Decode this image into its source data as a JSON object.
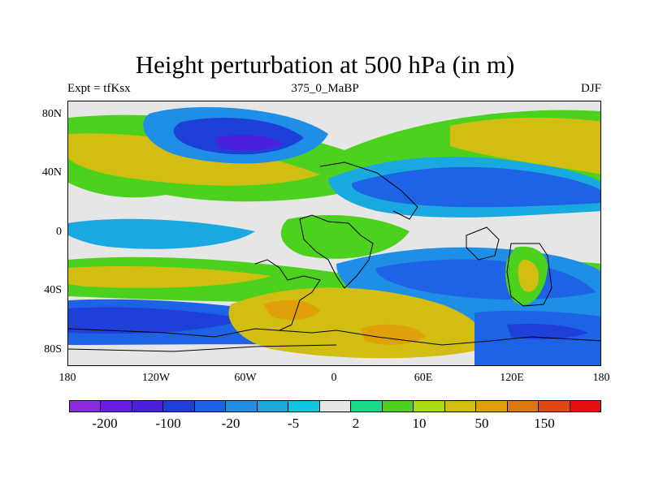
{
  "title": "Height perturbation at 500 hPa (in m)",
  "subtitle_left": "Expt = tfKsx",
  "subtitle_center": "375_0_MaBP",
  "subtitle_right": "DJF",
  "lat_labels": [
    "80N",
    "40N",
    "0",
    "40S",
    "80S"
  ],
  "lon_labels": [
    "180",
    "120W",
    "60W",
    "0",
    "60E",
    "120E",
    "180"
  ],
  "colorbar": {
    "colors": [
      "#8a2be2",
      "#6a1de0",
      "#4a20d8",
      "#1e3fd8",
      "#1a62e6",
      "#1e8ee6",
      "#1aa8e0",
      "#12c4e0",
      "#e6e6e6",
      "#1ed98a",
      "#4cd21e",
      "#a8dc10",
      "#d2be12",
      "#e0a00a",
      "#e07810",
      "#e04a10",
      "#e01212"
    ],
    "labels": [
      "-200",
      "-100",
      "-20",
      "-5",
      "2",
      "10",
      "50",
      "150"
    ]
  }
}
